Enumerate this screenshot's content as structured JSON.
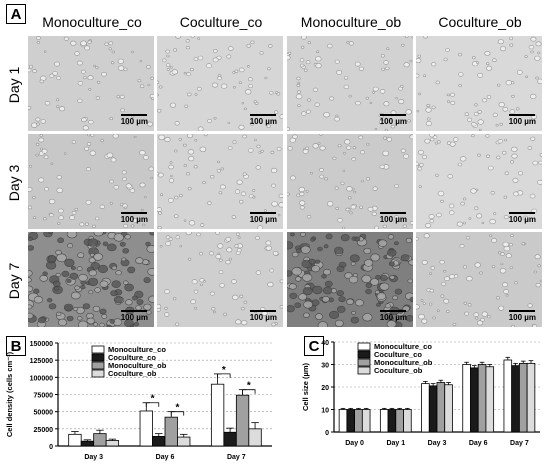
{
  "panel_a": {
    "label": "A",
    "columns": [
      "Monoculture_co",
      "Coculture_co",
      "Monoculture_ob",
      "Coculture_ob"
    ],
    "rows": [
      "Day 1",
      "Day 3",
      "Day 7"
    ],
    "scale_bar": "100 µm"
  },
  "panel_b": {
    "label": "B",
    "significance": "*"
  },
  "panel_c": {
    "label": "C"
  },
  "chart_data": [
    {
      "type": "bar",
      "ylabel": "Cell density (cells cm⁻²)",
      "ylim": [
        0,
        150000
      ],
      "yticks": [
        "0",
        "25000",
        "50000",
        "75000",
        "100000",
        "125000",
        "150000"
      ],
      "categories": [
        "Day 3",
        "Day 6",
        "Day 7"
      ],
      "series": [
        {
          "name": "Monoculture_co",
          "values": [
            17000,
            51000,
            90000
          ],
          "errors": [
            4000,
            12000,
            15000
          ]
        },
        {
          "name": "Coculture_co",
          "values": [
            7000,
            14000,
            20000
          ],
          "errors": [
            2000,
            4000,
            6000
          ]
        },
        {
          "name": "Monoculture_ob",
          "values": [
            18000,
            42000,
            74000
          ],
          "errors": [
            5000,
            8000,
            8000
          ]
        },
        {
          "name": "Coculture_ob",
          "values": [
            8000,
            13000,
            25000
          ],
          "errors": [
            2000,
            4000,
            9000
          ]
        }
      ],
      "legend": "top"
    },
    {
      "type": "bar",
      "ylabel": "Cell size (µm)",
      "ylim": [
        0,
        40
      ],
      "yticks": [
        "0",
        "10",
        "20",
        "30",
        "40"
      ],
      "categories": [
        "Day 0",
        "Day 1",
        "Day 3",
        "Day 6",
        "Day 7"
      ],
      "series": [
        {
          "name": "Monoculture_co",
          "values": [
            10,
            10,
            21.5,
            30,
            32
          ],
          "errors": [
            0.5,
            0.5,
            1,
            1,
            1.2
          ]
        },
        {
          "name": "Coculture_co",
          "values": [
            10,
            10,
            20.5,
            28.5,
            29.5
          ],
          "errors": [
            0.5,
            0.5,
            1,
            1,
            1
          ]
        },
        {
          "name": "Monoculture_ob",
          "values": [
            10,
            10,
            22,
            30,
            30.5
          ],
          "errors": [
            0.5,
            0.5,
            1,
            1,
            1
          ]
        },
        {
          "name": "Coculture_ob",
          "values": [
            10,
            10,
            21,
            29,
            30.5
          ],
          "errors": [
            0.5,
            0.5,
            1,
            1,
            1.2
          ]
        }
      ],
      "legend": "top"
    }
  ],
  "colors": {
    "series": [
      "#ffffff",
      "#1a1a1a",
      "#a0a0a0",
      "#dcdcdc"
    ]
  }
}
